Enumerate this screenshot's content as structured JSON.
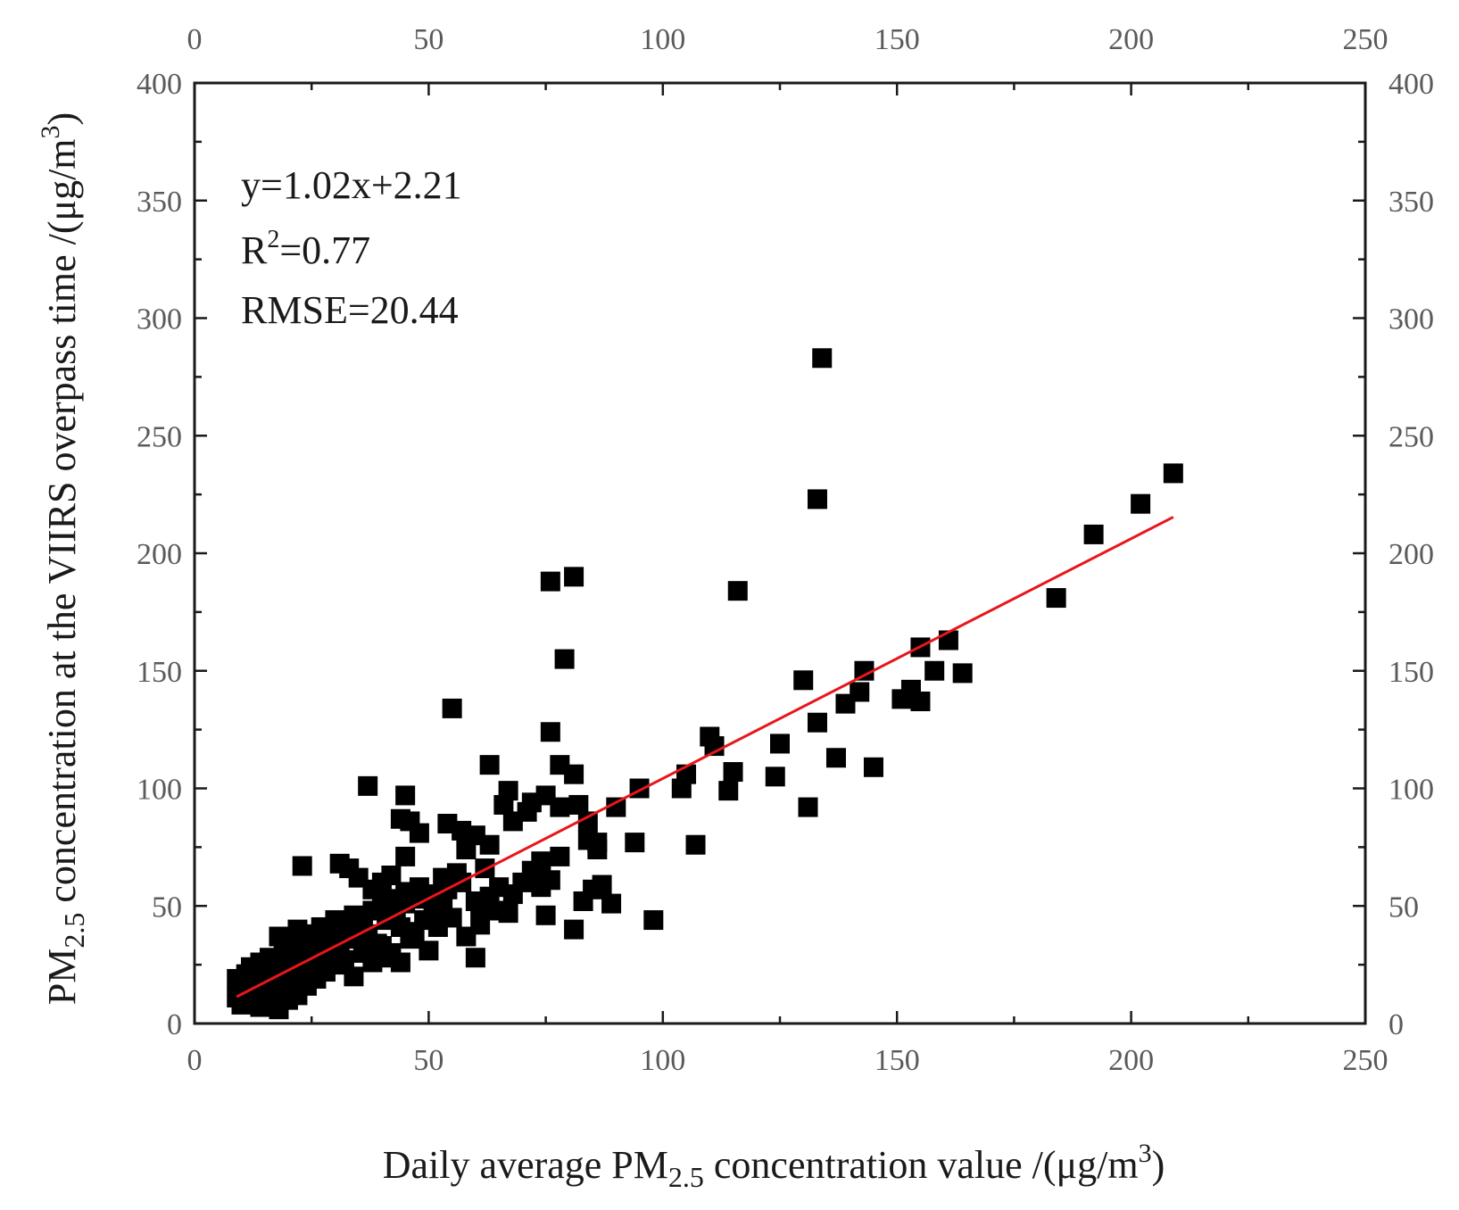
{
  "chart_data": {
    "type": "scatter",
    "title": "",
    "xlabel": {
      "prefix": "Daily average PM",
      "sub": "2.5",
      "middle": " concentration value /(μg/m",
      "sup": "3",
      "suffix": ")"
    },
    "ylabel": {
      "prefix": "PM",
      "sub": "2.5",
      "middle": " concentration  at the VIIRS overpass time /(μg/m",
      "sup": "3",
      "suffix": ")"
    },
    "xlim": [
      0,
      250
    ],
    "ylim": [
      0,
      400
    ],
    "xticks": [
      0,
      50,
      100,
      150,
      200,
      250
    ],
    "yticks": [
      0,
      50,
      100,
      150,
      200,
      250,
      300,
      350,
      400
    ],
    "grid": false,
    "axes_color": "#1a1a1a",
    "point_color": "#000000",
    "fit_color": "#e8161b",
    "annotation": {
      "equation": "y=1.02x+2.21",
      "r2_prefix": "R",
      "r2_sup": "2",
      "r2_value": "=0.77",
      "rmse": "RMSE=20.44"
    },
    "fit_line": {
      "slope": 1.02,
      "intercept": 2.21,
      "x_range": [
        9,
        209
      ]
    },
    "points": [
      [
        134,
        283
      ],
      [
        133,
        223
      ],
      [
        209,
        234
      ],
      [
        202,
        221
      ],
      [
        192,
        208
      ],
      [
        184,
        181
      ],
      [
        76,
        188
      ],
      [
        81,
        190
      ],
      [
        116,
        184
      ],
      [
        79,
        155
      ],
      [
        55,
        134
      ],
      [
        76,
        124
      ],
      [
        130,
        146
      ],
      [
        143,
        150
      ],
      [
        161,
        163
      ],
      [
        155,
        160
      ],
      [
        164,
        149
      ],
      [
        158,
        150
      ],
      [
        151,
        138
      ],
      [
        153,
        142
      ],
      [
        155,
        137
      ],
      [
        139,
        136
      ],
      [
        142,
        141
      ],
      [
        133,
        128
      ],
      [
        137,
        113
      ],
      [
        145,
        109
      ],
      [
        125,
        119
      ],
      [
        124,
        105
      ],
      [
        131,
        92
      ],
      [
        110,
        122
      ],
      [
        111,
        118
      ],
      [
        115,
        107
      ],
      [
        114,
        99
      ],
      [
        104,
        100
      ],
      [
        105,
        106
      ],
      [
        107,
        76
      ],
      [
        95,
        100
      ],
      [
        94,
        77
      ],
      [
        90,
        92
      ],
      [
        98,
        44
      ],
      [
        37,
        101
      ],
      [
        45,
        97
      ],
      [
        63,
        110
      ],
      [
        78,
        110
      ],
      [
        81,
        106
      ],
      [
        82,
        93
      ],
      [
        67,
        99
      ],
      [
        72,
        94
      ],
      [
        75,
        97
      ],
      [
        66,
        93
      ],
      [
        68,
        86
      ],
      [
        71,
        90
      ],
      [
        78,
        92
      ],
      [
        84,
        86
      ],
      [
        86,
        77
      ],
      [
        84,
        78
      ],
      [
        86,
        74
      ],
      [
        87,
        59
      ],
      [
        85,
        57
      ],
      [
        89,
        51
      ],
      [
        83,
        52
      ],
      [
        78,
        71
      ],
      [
        74,
        69
      ],
      [
        76,
        61
      ],
      [
        75,
        46
      ],
      [
        81,
        40
      ],
      [
        68,
        55
      ],
      [
        65,
        58
      ],
      [
        67,
        47
      ],
      [
        63,
        54
      ],
      [
        61,
        42
      ],
      [
        60,
        28
      ],
      [
        54,
        85
      ],
      [
        57,
        82
      ],
      [
        60,
        80
      ],
      [
        63,
        76
      ],
      [
        58,
        74
      ],
      [
        56,
        64
      ],
      [
        53,
        62
      ],
      [
        48,
        81
      ],
      [
        46,
        86
      ],
      [
        44,
        87
      ],
      [
        45,
        71
      ],
      [
        42,
        63
      ],
      [
        40,
        60
      ],
      [
        38,
        57
      ],
      [
        35,
        62
      ],
      [
        31,
        68
      ],
      [
        33,
        66
      ],
      [
        23,
        67
      ],
      [
        47,
        53
      ],
      [
        45,
        51
      ],
      [
        43,
        48
      ],
      [
        41,
        44
      ],
      [
        44,
        41
      ],
      [
        49,
        44
      ],
      [
        51,
        47
      ],
      [
        53,
        49
      ],
      [
        50,
        31
      ],
      [
        46,
        36
      ],
      [
        44,
        26
      ],
      [
        41,
        28
      ],
      [
        39,
        34
      ],
      [
        37,
        38
      ],
      [
        35,
        41
      ],
      [
        33,
        36
      ],
      [
        31,
        32
      ],
      [
        30,
        29
      ],
      [
        28,
        31
      ],
      [
        27,
        26
      ],
      [
        25,
        24
      ],
      [
        24,
        28
      ],
      [
        22,
        21
      ],
      [
        21,
        25
      ],
      [
        20,
        18
      ],
      [
        19,
        22
      ],
      [
        18,
        15
      ],
      [
        17,
        19
      ],
      [
        16,
        13
      ],
      [
        15,
        17
      ],
      [
        14,
        11
      ],
      [
        13,
        15
      ],
      [
        12,
        9
      ],
      [
        11,
        13
      ],
      [
        10,
        8
      ],
      [
        9,
        11
      ],
      [
        9,
        19
      ],
      [
        10,
        16
      ],
      [
        11,
        21
      ],
      [
        12,
        24
      ],
      [
        13,
        20
      ],
      [
        14,
        26
      ],
      [
        15,
        23
      ],
      [
        16,
        28
      ],
      [
        17,
        24
      ],
      [
        18,
        37
      ],
      [
        19,
        30
      ],
      [
        20,
        33
      ],
      [
        21,
        27
      ],
      [
        22,
        40
      ],
      [
        23,
        35
      ],
      [
        24,
        31
      ],
      [
        25,
        38
      ],
      [
        26,
        36
      ],
      [
        27,
        41
      ],
      [
        28,
        33
      ],
      [
        29,
        37
      ],
      [
        30,
        44
      ],
      [
        32,
        40
      ],
      [
        34,
        46
      ],
      [
        36,
        43
      ],
      [
        38,
        48
      ],
      [
        40,
        51
      ],
      [
        42,
        53
      ],
      [
        45,
        56
      ],
      [
        48,
        58
      ],
      [
        51,
        55
      ],
      [
        54,
        57
      ],
      [
        57,
        60
      ],
      [
        60,
        52
      ],
      [
        62,
        66
      ],
      [
        64,
        48
      ],
      [
        14,
        7
      ],
      [
        16,
        9
      ],
      [
        18,
        6
      ],
      [
        20,
        10
      ],
      [
        22,
        12
      ],
      [
        24,
        16
      ],
      [
        26,
        19
      ],
      [
        28,
        22
      ],
      [
        30,
        25
      ],
      [
        32,
        27
      ],
      [
        34,
        20
      ],
      [
        36,
        30
      ],
      [
        38,
        26
      ],
      [
        40,
        33
      ],
      [
        42,
        30
      ],
      [
        47,
        39
      ],
      [
        52,
        41
      ],
      [
        55,
        45
      ],
      [
        58,
        37
      ],
      [
        61,
        50
      ],
      [
        70,
        60
      ],
      [
        72,
        65
      ],
      [
        74,
        58
      ]
    ]
  }
}
